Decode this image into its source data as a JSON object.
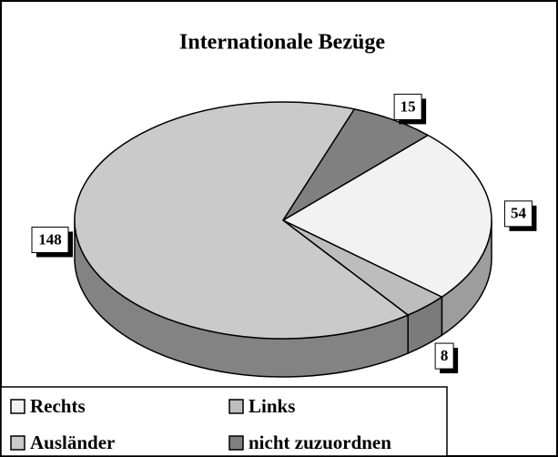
{
  "chart_data": {
    "type": "pie",
    "title": "Internationale Bezüge",
    "categories": [
      "Rechts",
      "Links",
      "Ausländer",
      "nicht zuzuordnen"
    ],
    "values": [
      54,
      8,
      148,
      15
    ],
    "colors": [
      "#f2f2f2",
      "#bdbdbd",
      "#cacaca",
      "#808080"
    ],
    "legend": "bottom-left"
  }
}
